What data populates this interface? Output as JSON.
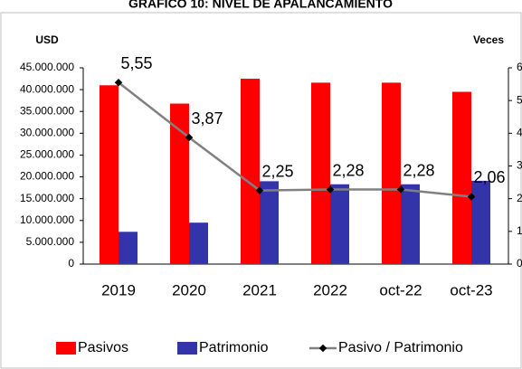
{
  "chart_data": {
    "type": "bar_line",
    "title": "GRÁFICO 10: NIVEL DE APALANCAMIENTO",
    "y_label": "USD",
    "y2_label": "Veces",
    "categories": [
      "2019",
      "2020",
      "2021",
      "2022",
      "oct-22",
      "oct-23"
    ],
    "series": [
      {
        "name": "Pasivos",
        "color": "#ff0000",
        "type": "bar",
        "values": [
          41000000,
          36800000,
          42500000,
          41600000,
          41600000,
          39500000
        ]
      },
      {
        "name": "Patrimonio",
        "color": "#3333aa",
        "type": "bar",
        "values": [
          7400000,
          9500000,
          19000000,
          18300000,
          18300000,
          19100000
        ]
      },
      {
        "name": "Pasivo / Patrimonio",
        "color": "#808080",
        "type": "line",
        "axis": "y2",
        "values": [
          5.55,
          3.87,
          2.25,
          2.28,
          2.28,
          2.06
        ],
        "value_labels": [
          "5,55",
          "3,87",
          "2,25",
          "2,28",
          "2,28",
          "2,06"
        ]
      }
    ],
    "ylim": [
      0,
      45000000
    ],
    "yticks": [
      0,
      {
        "value": 5000000,
        "label": "5.000.000"
      },
      {
        "value": 10000000,
        "label": "10.000.000"
      },
      {
        "value": 15000000,
        "label": "15.000.000"
      },
      {
        "value": 20000000,
        "label": "20.000.000"
      },
      {
        "value": 25000000,
        "label": "25.000.000"
      },
      {
        "value": 30000000,
        "label": "30.000.000"
      },
      {
        "value": 35000000,
        "label": "35.000.000"
      },
      {
        "value": 40000000,
        "label": "40.000.000"
      },
      {
        "value": 45000000,
        "label": "45.000.000"
      }
    ],
    "y2lim": [
      0,
      6
    ],
    "y2ticks": [
      0,
      1,
      2,
      3,
      4,
      5,
      6
    ]
  }
}
